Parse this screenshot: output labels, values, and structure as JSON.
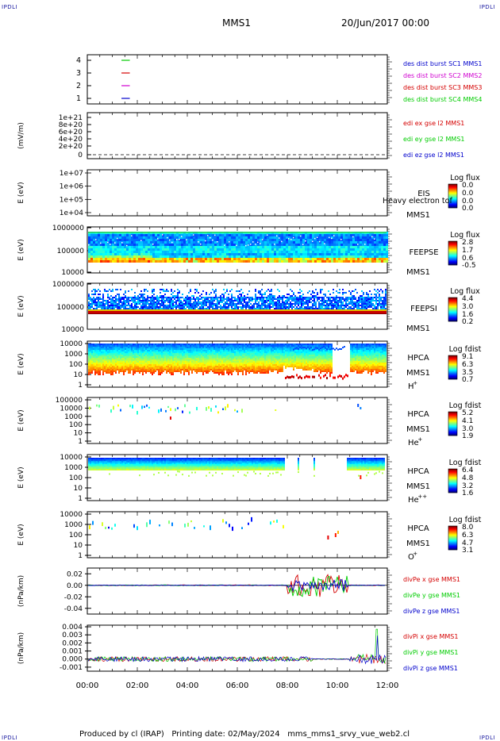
{
  "corner_tag": "IPDLI",
  "header": {
    "title": "MMS1",
    "date": "20/Jun/2017 00:00"
  },
  "footer": {
    "text": "Produced by cl (IRAP)   Printing date: 02/May/2024   mms_mms1_srvy_vue_web2.cl"
  },
  "time_axis": {
    "ticks": [
      "00:00",
      "02:00",
      "04:00",
      "06:00",
      "08:00",
      "10:00",
      "12:00"
    ]
  },
  "colors": {
    "red": "#d40000",
    "green": "#00cc00",
    "blue": "#0000cc",
    "magenta": "#d000d0"
  },
  "panels": [
    {
      "id": "burst",
      "ylabel": "",
      "yticks": [
        "4",
        "3",
        "2",
        "1"
      ],
      "legend": [
        {
          "text": "des dist burst SC1 MMS1",
          "color": "#0000cc"
        },
        {
          "text": "des dist burst SC2 MMS2",
          "color": "#d000d0"
        },
        {
          "text": "des dist burst SC3 MMS3",
          "color": "#d40000"
        },
        {
          "text": "des dist burst SC4 MMS4",
          "color": "#00cc00"
        }
      ]
    },
    {
      "id": "efield",
      "ylabel": "(mV/m)",
      "yticks": [
        "1e+21",
        "8e+20",
        "6e+20",
        "4e+20",
        "2e+20",
        "0"
      ],
      "legend": [
        {
          "text": "edi ex gse l2 MMS1",
          "color": "#d40000"
        },
        {
          "text": "edi ey gse l2 MMS1",
          "color": "#00cc00"
        },
        {
          "text": "edi ez gse l2 MMS1",
          "color": "#0000cc"
        }
      ]
    },
    {
      "id": "eis",
      "ylabel": "E (eV)",
      "yticks": [
        "1e+07",
        "1e+06",
        "1e+05",
        "1e+04"
      ],
      "labels": [
        "EIS",
        "MMS1"
      ],
      "overlay": "Heavy electron tof",
      "cbar_title": "Log flux",
      "cbar_ticks": [
        "0.0",
        "0.0",
        "0.0",
        "0.0"
      ]
    },
    {
      "id": "feepse",
      "ylabel": "E (eV)",
      "yticks": [
        "1000000",
        "100000",
        "10000"
      ],
      "labels": [
        "FEEPSE",
        "MMS1"
      ],
      "cbar_title": "Log flux",
      "cbar_ticks": [
        "2.8",
        "1.7",
        "0.6",
        "-0.5"
      ]
    },
    {
      "id": "feepsi",
      "ylabel": "E (eV)",
      "yticks": [
        "1000000",
        "100000",
        "10000"
      ],
      "labels": [
        "FEEPSI",
        "MMS1"
      ],
      "cbar_title": "Log flux",
      "cbar_ticks": [
        "4.4",
        "3.0",
        "1.6",
        "0.2"
      ]
    },
    {
      "id": "hpca_h",
      "ylabel": "E (eV)",
      "yticks": [
        "10000",
        "1000",
        "100",
        "10",
        "1"
      ],
      "labels": [
        "HPCA",
        "MMS1"
      ],
      "species": "H",
      "charge": "+",
      "cbar_title": "Log fdist",
      "cbar_ticks": [
        "9.1",
        "6.3",
        "3.5",
        "0.7"
      ]
    },
    {
      "id": "hpca_he",
      "ylabel": "E (eV)",
      "yticks": [
        "100000",
        "10000",
        "1000",
        "100",
        "10",
        "1"
      ],
      "labels": [
        "HPCA",
        "MMS1"
      ],
      "species": "He",
      "charge": "+",
      "cbar_title": "Log fdist",
      "cbar_ticks": [
        "5.2",
        "4.1",
        "3.0",
        "1.9"
      ]
    },
    {
      "id": "hpca_he2",
      "ylabel": "E (eV)",
      "yticks": [
        "10000",
        "1000",
        "100",
        "10",
        "1"
      ],
      "labels": [
        "HPCA",
        "MMS1"
      ],
      "species": "He",
      "charge": "++",
      "cbar_title": "Log fdist",
      "cbar_ticks": [
        "6.4",
        "4.8",
        "3.2",
        "1.6"
      ]
    },
    {
      "id": "hpca_o",
      "ylabel": "E (eV)",
      "yticks": [
        "10000",
        "1000",
        "100",
        "10",
        "1"
      ],
      "labels": [
        "HPCA",
        "MMS1"
      ],
      "species": "O",
      "charge": "+",
      "cbar_title": "Log fdist",
      "cbar_ticks": [
        "8.0",
        "6.3",
        "4.7",
        "3.1"
      ]
    },
    {
      "id": "divpe",
      "ylabel": "(nPa/km)",
      "yticks": [
        "0.02",
        "0.00",
        "-0.02",
        "-0.04"
      ],
      "legend": [
        {
          "text": "divPe x gse MMS1",
          "color": "#d40000"
        },
        {
          "text": "divPe y gse MMS1",
          "color": "#00cc00"
        },
        {
          "text": "divPe z gse MMS1",
          "color": "#0000cc"
        }
      ]
    },
    {
      "id": "divpi",
      "ylabel": "(nPa/km)",
      "yticks": [
        "0.004",
        "0.003",
        "0.002",
        "0.001",
        "0.000",
        "-0.001"
      ],
      "legend": [
        {
          "text": "divPi x gse MMS1",
          "color": "#d40000"
        },
        {
          "text": "divPi y gse MMS1",
          "color": "#00cc00"
        },
        {
          "text": "divPi z gse MMS1",
          "color": "#0000cc"
        }
      ]
    }
  ],
  "chart_data": {
    "type": "heatmap",
    "x_range": [
      "00:00",
      "12:00"
    ],
    "burst_intervals": [
      {
        "spacecraft": 4,
        "start": "01:22",
        "end": "01:42"
      },
      {
        "spacecraft": 3,
        "start": "01:22",
        "end": "01:42"
      },
      {
        "spacecraft": 2,
        "start": "01:22",
        "end": "01:42"
      },
      {
        "spacecraft": 1,
        "start": "01:22",
        "end": "01:42"
      }
    ],
    "efield_ylim": [
      0,
      1e+21
    ],
    "divpe_ylim": [
      -0.05,
      0.03
    ],
    "divpi_ylim": [
      -0.0015,
      0.0042
    ]
  }
}
